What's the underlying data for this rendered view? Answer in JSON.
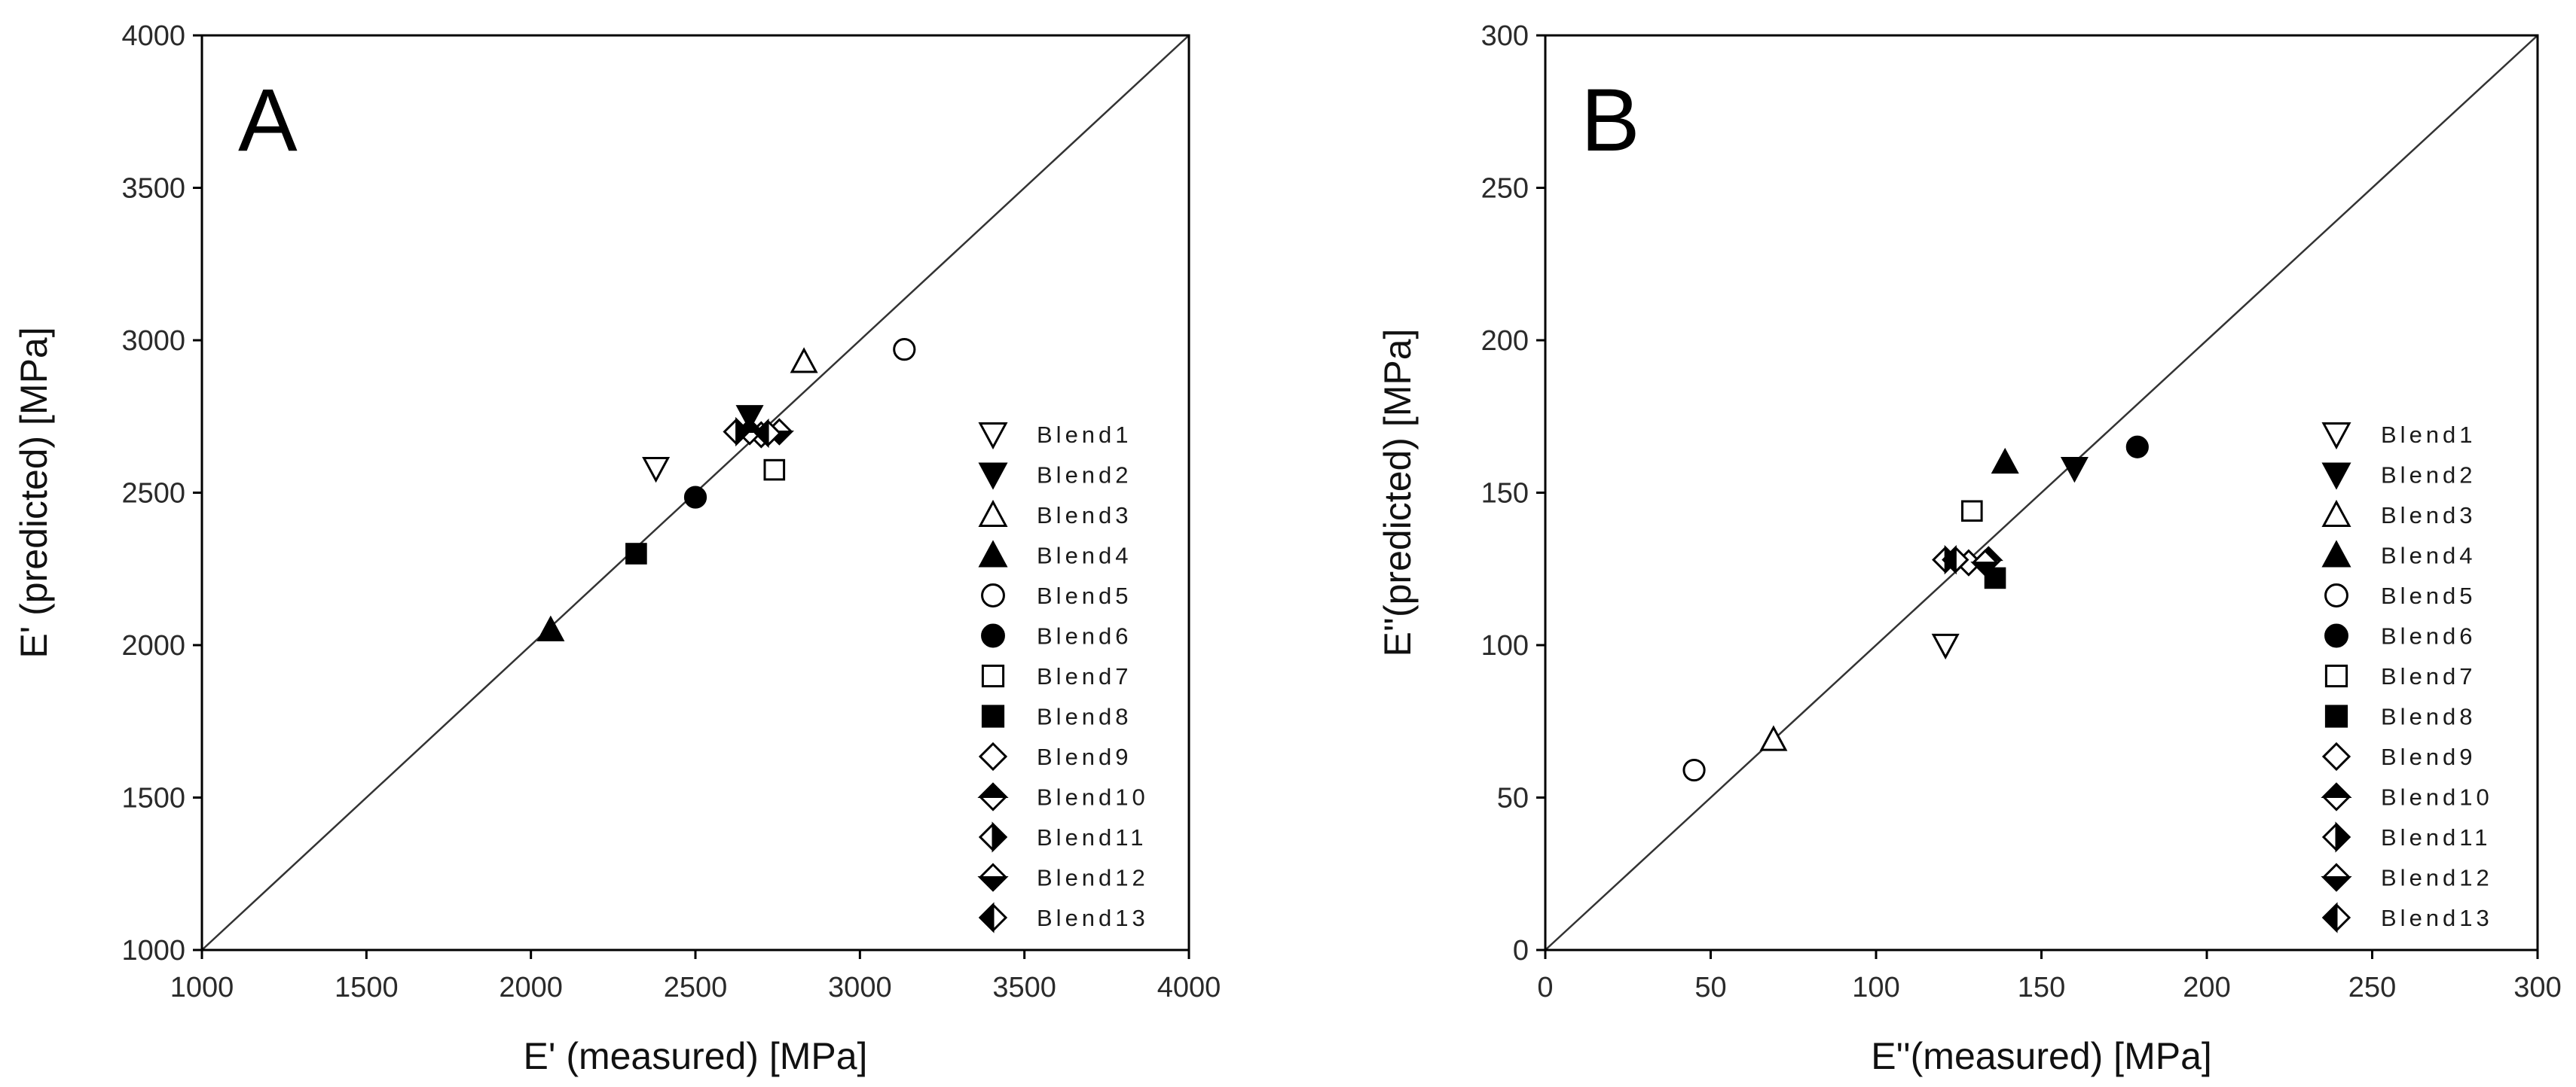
{
  "figure": {
    "background": "#ffffff",
    "ink": "#000000"
  },
  "chart_data": [
    {
      "type": "scatter",
      "panel_label": "A",
      "xlabel": "E' (measured) [MPa]",
      "ylabel": "E' (predicted) [MPa]",
      "xlim": [
        1000,
        4000
      ],
      "ylim": [
        1000,
        4000
      ],
      "xticks": [
        1000,
        1500,
        2000,
        2500,
        3000,
        3500,
        4000
      ],
      "yticks": [
        1000,
        1500,
        2000,
        2500,
        3000,
        3500,
        4000
      ],
      "reference_line": "y = x",
      "legend_position": "lower-right",
      "series": [
        {
          "name": "Blend1",
          "marker": "triangle-down-open",
          "x": 2380,
          "y": 2580
        },
        {
          "name": "Blend2",
          "marker": "triangle-down-filled",
          "x": 2665,
          "y": 2750
        },
        {
          "name": "Blend3",
          "marker": "triangle-up-open",
          "x": 2830,
          "y": 2930
        },
        {
          "name": "Blend4",
          "marker": "triangle-up-filled",
          "x": 2060,
          "y": 2050
        },
        {
          "name": "Blend5",
          "marker": "circle-open",
          "x": 3135,
          "y": 2970
        },
        {
          "name": "Blend6",
          "marker": "circle-filled",
          "x": 2500,
          "y": 2485
        },
        {
          "name": "Blend7",
          "marker": "square-open",
          "x": 2740,
          "y": 2575
        },
        {
          "name": "Blend8",
          "marker": "square-filled",
          "x": 2320,
          "y": 2300
        },
        {
          "name": "Blend9",
          "marker": "diamond-open",
          "x": 2700,
          "y": 2690
        },
        {
          "name": "Blend10",
          "marker": "diamond-top-half",
          "x": 2665,
          "y": 2700
        },
        {
          "name": "Blend11",
          "marker": "diamond-right-half",
          "x": 2625,
          "y": 2700
        },
        {
          "name": "Blend12",
          "marker": "diamond-bottom-half",
          "x": 2755,
          "y": 2700
        },
        {
          "name": "Blend13",
          "marker": "diamond-left-half",
          "x": 2720,
          "y": 2695
        }
      ]
    },
    {
      "type": "scatter",
      "panel_label": "B",
      "xlabel": "E''(measured) [MPa]",
      "ylabel": "E''(predicted) [MPa]",
      "xlim": [
        0,
        300
      ],
      "ylim": [
        0,
        300
      ],
      "xticks": [
        0,
        50,
        100,
        150,
        200,
        250,
        300
      ],
      "yticks": [
        0,
        50,
        100,
        150,
        200,
        250,
        300
      ],
      "reference_line": "y = x",
      "legend_position": "lower-right",
      "series": [
        {
          "name": "Blend1",
          "marker": "triangle-down-open",
          "x": 121,
          "y": 100
        },
        {
          "name": "Blend2",
          "marker": "triangle-down-filled",
          "x": 160,
          "y": 158
        },
        {
          "name": "Blend3",
          "marker": "triangle-up-open",
          "x": 69,
          "y": 69
        },
        {
          "name": "Blend4",
          "marker": "triangle-up-filled",
          "x": 139,
          "y": 160
        },
        {
          "name": "Blend5",
          "marker": "circle-open",
          "x": 45,
          "y": 59
        },
        {
          "name": "Blend6",
          "marker": "circle-filled",
          "x": 179,
          "y": 165
        },
        {
          "name": "Blend7",
          "marker": "square-open",
          "x": 129,
          "y": 144
        },
        {
          "name": "Blend8",
          "marker": "square-filled",
          "x": 136,
          "y": 122
        },
        {
          "name": "Blend9",
          "marker": "diamond-open",
          "x": 128,
          "y": 127
        },
        {
          "name": "Blend10",
          "marker": "diamond-top-half",
          "x": 134,
          "y": 128
        },
        {
          "name": "Blend11",
          "marker": "diamond-right-half",
          "x": 121,
          "y": 128
        },
        {
          "name": "Blend12",
          "marker": "diamond-bottom-half",
          "x": 133,
          "y": 127
        },
        {
          "name": "Blend13",
          "marker": "diamond-left-half",
          "x": 124,
          "y": 128
        }
      ]
    }
  ]
}
